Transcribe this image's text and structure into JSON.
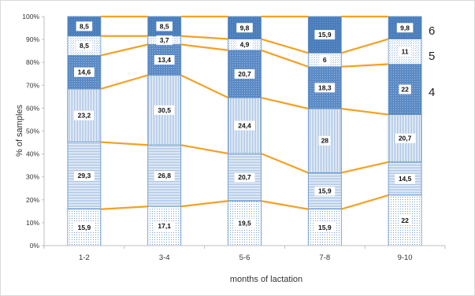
{
  "chart_data": {
    "type": "bar",
    "stacked": true,
    "categories": [
      "1-2",
      "3-4",
      "5-6",
      "7-8",
      "9-10"
    ],
    "series": [
      {
        "values": [
          15.9,
          17.1,
          19.5,
          15.9,
          22
        ],
        "labels": [
          "15,9",
          "17,1",
          "19,5",
          "15,9",
          "22"
        ]
      },
      {
        "values": [
          29.3,
          26.8,
          20.7,
          15.9,
          14.5
        ],
        "labels": [
          "29,3",
          "26,8",
          "20,7",
          "15,9",
          "14,5"
        ]
      },
      {
        "values": [
          23.2,
          30.5,
          24.4,
          28,
          20.7
        ],
        "labels": [
          "23,2",
          "30,5",
          "24,4",
          "28",
          "20,7"
        ]
      },
      {
        "name": "4",
        "values": [
          14.6,
          13.4,
          20.7,
          18.3,
          22
        ],
        "labels": [
          "14,6",
          "13,4",
          "20,7",
          "18,3",
          "22"
        ]
      },
      {
        "name": "5",
        "values": [
          8.5,
          3.7,
          4.9,
          6,
          11
        ],
        "labels": [
          "8,5",
          "3,7",
          "4,9",
          "6",
          "11"
        ]
      },
      {
        "name": "6",
        "values": [
          8.5,
          8.5,
          9.8,
          15.9,
          9.8
        ],
        "labels": [
          "8,5",
          "8,5",
          "9,8",
          "15,9",
          "9,8"
        ]
      }
    ],
    "xlabel": "months of lactation",
    "ylabel": "% of samples",
    "ylim": [
      0,
      100
    ],
    "yticks": [
      "0%",
      "10%",
      "20%",
      "30%",
      "40%",
      "50%",
      "60%",
      "70%",
      "80%",
      "90%",
      "100%"
    ],
    "grid": false,
    "connector_lines": true,
    "colors": {
      "connector": "#f4a124",
      "outline": "#5b8fc9",
      "dark_fill": "#4f81bd",
      "medium_fill": "#7fa6d6",
      "light_fill": "#e3ecf7"
    }
  }
}
